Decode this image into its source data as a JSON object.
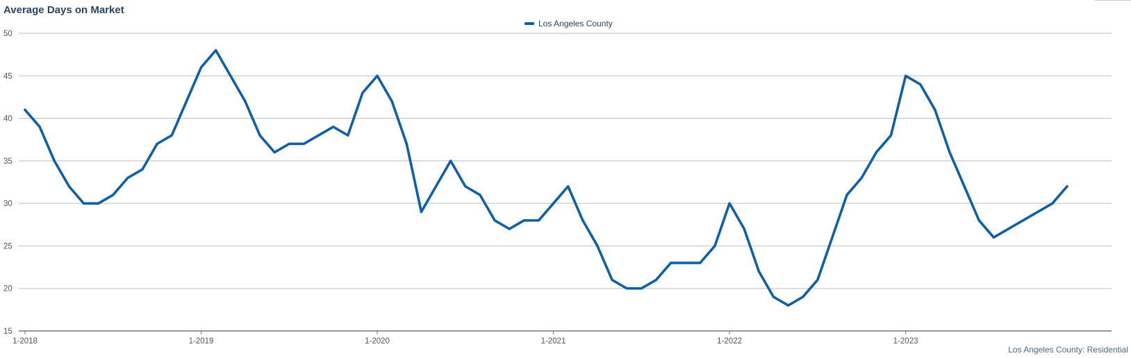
{
  "chart_data": {
    "type": "line",
    "title": "Average Days on Market",
    "xlabel": "",
    "ylabel": "",
    "ylim": [
      15,
      50
    ],
    "yticks": [
      15,
      20,
      25,
      30,
      35,
      40,
      45,
      50
    ],
    "xticks": [
      "1-2018",
      "1-2019",
      "1-2020",
      "1-2021",
      "1-2022",
      "1-2023"
    ],
    "grid": true,
    "legend_placement": "top-center",
    "series": [
      {
        "name": "Los Angeles County",
        "color": "#0e5fa8",
        "x": [
          "1-2018",
          "2-2018",
          "3-2018",
          "4-2018",
          "5-2018",
          "6-2018",
          "7-2018",
          "8-2018",
          "9-2018",
          "10-2018",
          "11-2018",
          "12-2018",
          "1-2019",
          "2-2019",
          "3-2019",
          "4-2019",
          "5-2019",
          "6-2019",
          "7-2019",
          "8-2019",
          "9-2019",
          "10-2019",
          "11-2019",
          "12-2019",
          "1-2020",
          "2-2020",
          "3-2020",
          "4-2020",
          "5-2020",
          "6-2020",
          "7-2020",
          "8-2020",
          "9-2020",
          "10-2020",
          "11-2020",
          "12-2020",
          "1-2021",
          "2-2021",
          "3-2021",
          "4-2021",
          "5-2021",
          "6-2021",
          "7-2021",
          "8-2021",
          "9-2021",
          "10-2021",
          "11-2021",
          "12-2021",
          "1-2022",
          "2-2022",
          "3-2022",
          "4-2022",
          "5-2022",
          "6-2022",
          "7-2022",
          "8-2022",
          "9-2022",
          "10-2022",
          "11-2022",
          "12-2022",
          "1-2023",
          "2-2023",
          "3-2023",
          "4-2023",
          "5-2023",
          "6-2023",
          "7-2023",
          "8-2023",
          "9-2023",
          "10-2023",
          "11-2023",
          "12-2023"
        ],
        "values": [
          41,
          39,
          35,
          32,
          30,
          30,
          31,
          33,
          34,
          37,
          38,
          42,
          46,
          48,
          45,
          42,
          38,
          36,
          37,
          37,
          38,
          39,
          38,
          43,
          45,
          42,
          37,
          29,
          32,
          35,
          32,
          31,
          28,
          27,
          28,
          28,
          30,
          32,
          28,
          25,
          21,
          20,
          20,
          21,
          23,
          23,
          23,
          25,
          30,
          27,
          22,
          19,
          18,
          19,
          21,
          26,
          31,
          33,
          36,
          38,
          45,
          44,
          41,
          36,
          32,
          28,
          26,
          27,
          28,
          29,
          30,
          32
        ]
      }
    ]
  },
  "source_note": "Los Angeles County: Residential"
}
